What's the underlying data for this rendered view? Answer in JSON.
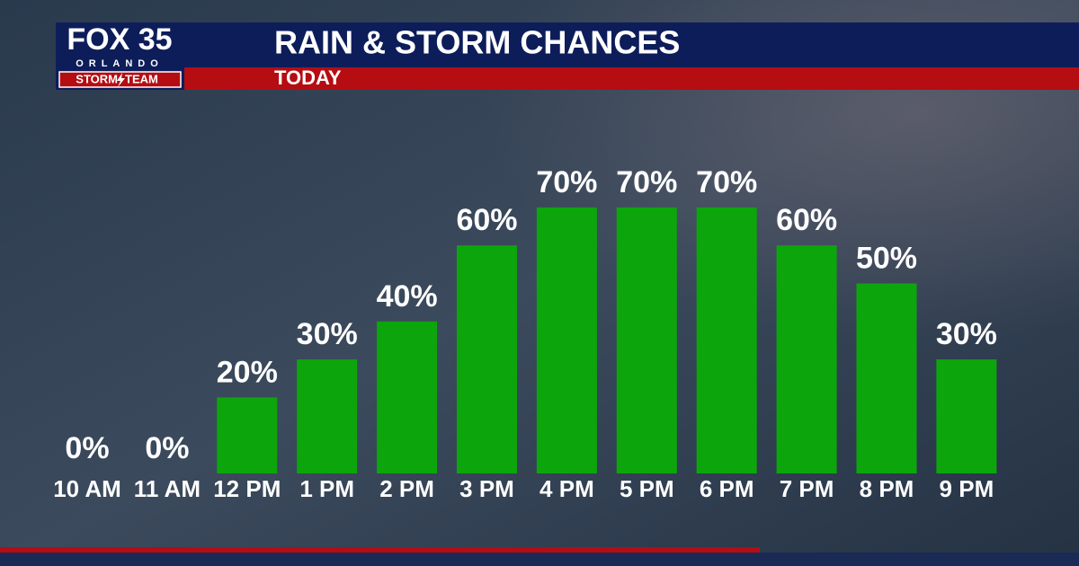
{
  "logo": {
    "brand": "FOX 35",
    "city": "ORLANDO",
    "team_left": "STORM",
    "team_right": "TEAM"
  },
  "chart_data": {
    "type": "bar",
    "title": "RAIN & STORM CHANCES",
    "subtitle": "TODAY",
    "categories": [
      "10 AM",
      "11 AM",
      "12 PM",
      "1 PM",
      "2 PM",
      "3 PM",
      "4 PM",
      "5 PM",
      "6 PM",
      "7 PM",
      "8 PM",
      "9 PM"
    ],
    "values": [
      0,
      0,
      20,
      30,
      40,
      60,
      70,
      70,
      70,
      60,
      50,
      30
    ],
    "value_labels": [
      "0%",
      "0%",
      "20%",
      "30%",
      "40%",
      "60%",
      "70%",
      "70%",
      "70%",
      "60%",
      "50%",
      "30%"
    ],
    "color": "#0ca60c"
  }
}
